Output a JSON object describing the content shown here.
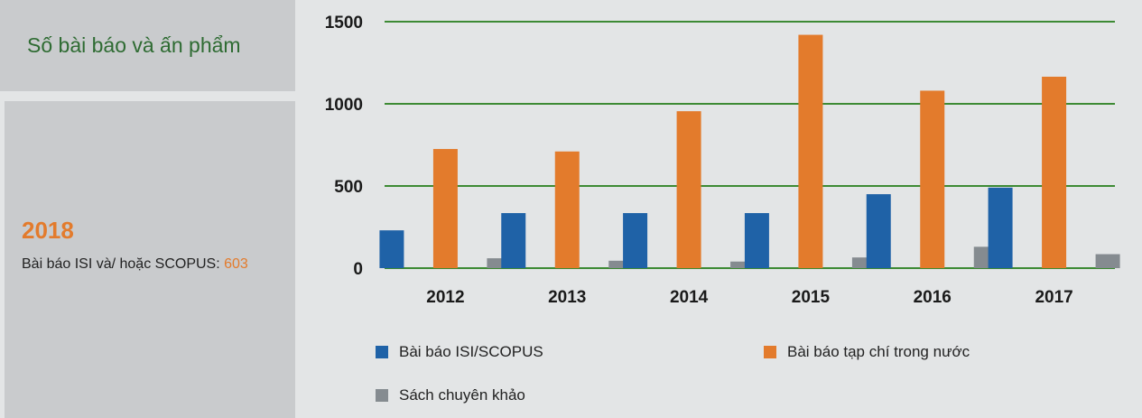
{
  "sidebar": {
    "title": "Số bài báo và ấn phẩm",
    "year": "2018",
    "info_label": "Bài báo ISI và/ hoặc SCOPUS: ",
    "info_value": "603"
  },
  "chart_data": {
    "type": "bar",
    "title": "",
    "xlabel": "",
    "ylabel": "",
    "categories": [
      "2012",
      "2013",
      "2014",
      "2015",
      "2016",
      "2017"
    ],
    "ylim": [
      0,
      1500
    ],
    "yticks": [
      0,
      500,
      1000,
      1500
    ],
    "grid": true,
    "legend_position": "bottom",
    "series": [
      {
        "name": "Bài báo ISI/SCOPUS",
        "color": "#1f62a7",
        "values": [
          230,
          335,
          335,
          335,
          450,
          490
        ]
      },
      {
        "name": "Bài báo tạp chí trong nước",
        "color": "#e37b2c",
        "values": [
          725,
          710,
          955,
          1420,
          1080,
          1165
        ]
      },
      {
        "name": "Sách chuyên khảo",
        "color": "#858b90",
        "values": [
          60,
          45,
          40,
          65,
          130,
          85
        ]
      }
    ]
  },
  "colors": {
    "grid": "#3d8a34",
    "title_text": "#2e6b32",
    "accent": "#e37b2c"
  }
}
